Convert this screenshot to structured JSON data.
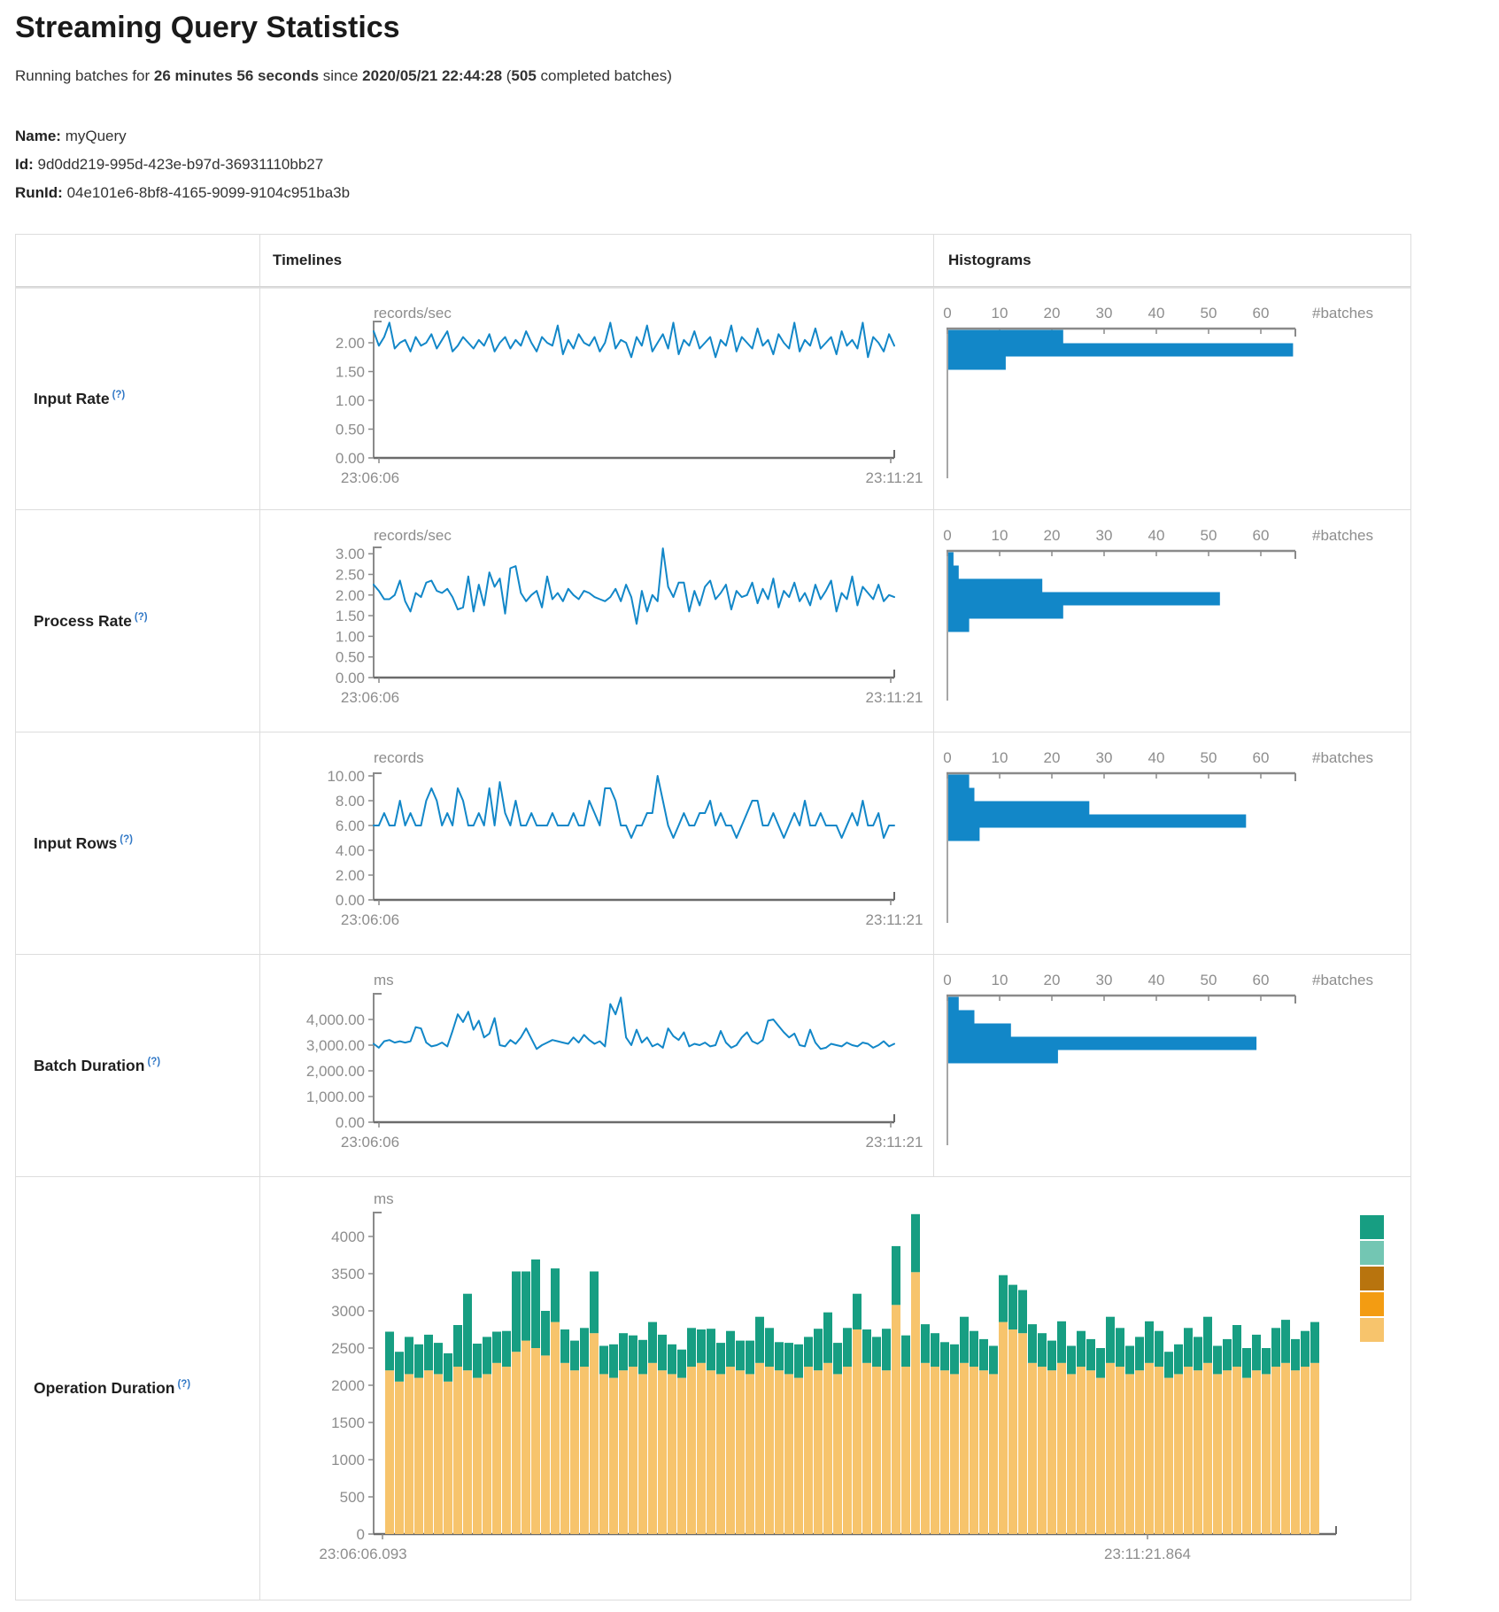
{
  "page": {
    "title": "Streaming Query Statistics",
    "running_prefix": "Running batches for ",
    "duration": "26 minutes 56 seconds",
    "since_text": " since ",
    "start_time": "2020/05/21 22:44:28",
    "paren_open": " (",
    "completed_batches": "505",
    "completed_suffix": " completed batches)",
    "name_label": "Name:",
    "name_value": "myQuery",
    "id_label": "Id:",
    "id_value": "9d0dd219-995d-423e-b97d-36931110bb27",
    "runid_label": "RunId:",
    "runid_value": "04e101e6-8bf8-4165-9099-9104c951ba3b"
  },
  "table": {
    "col_timelines": "Timelines",
    "col_histograms": "Histograms"
  },
  "colors": {
    "line": "#1287c8",
    "bar": "#1287c8",
    "axis_dark": "#6b6b6b",
    "axis": "#8a8a8a",
    "tick_text": "#8d8d8d",
    "help": "#3178c6",
    "legend": [
      "#179e82",
      "#73c6b3",
      "#b8740e",
      "#f39c12",
      "#f7c46c"
    ]
  },
  "chart_data": [
    {
      "row": "Input Rate",
      "help": "(?)",
      "timeline": {
        "type": "line",
        "unit": "records/sec",
        "x_start": "23:06:06",
        "x_end": "23:11:21",
        "ytick_labels": [
          "2.00",
          "1.50",
          "1.00",
          "0.50",
          "0.00"
        ],
        "yticks": [
          2,
          1.5,
          1,
          0.5,
          0
        ],
        "values": [
          2.2,
          1.95,
          2.1,
          2.35,
          1.9,
          2.0,
          2.05,
          1.85,
          2.1,
          1.95,
          2.0,
          2.15,
          1.9,
          2.05,
          2.2,
          1.85,
          1.95,
          2.1,
          2.0,
          1.9,
          2.05,
          1.95,
          2.15,
          1.85,
          2.0,
          2.1,
          1.9,
          2.05,
          1.95,
          2.2,
          2.0,
          1.85,
          2.1,
          2.0,
          1.95,
          2.3,
          1.8,
          2.05,
          1.9,
          2.15,
          2.0,
          1.95,
          2.1,
          1.85,
          2.0,
          2.35,
          1.9,
          2.05,
          2.0,
          1.75,
          2.1,
          1.95,
          2.3,
          1.85,
          2.0,
          2.15,
          1.9,
          2.35,
          1.8,
          2.05,
          1.95,
          2.2,
          1.9,
          2.0,
          2.1,
          1.75,
          2.05,
          1.95,
          2.3,
          1.85,
          2.1,
          2.0,
          1.9,
          2.25,
          1.95,
          2.05,
          1.8,
          2.15,
          2.0,
          1.9,
          2.35,
          1.85,
          2.05,
          1.95,
          2.25,
          1.9,
          2.0,
          2.1,
          1.8,
          2.2,
          1.95,
          2.05,
          1.9,
          2.35,
          1.75,
          2.1,
          2.0,
          1.85,
          2.15,
          1.95
        ]
      },
      "histogram": {
        "type": "bar",
        "orientation": "horizontal",
        "unit": "#batches",
        "xticks": [
          0,
          10,
          20,
          30,
          40,
          50,
          60
        ],
        "buckets": [
          22,
          66,
          11
        ]
      }
    },
    {
      "row": "Process Rate",
      "help": "(?)",
      "timeline": {
        "type": "line",
        "unit": "records/sec",
        "x_start": "23:06:06",
        "x_end": "23:11:21",
        "ytick_labels": [
          "3.00",
          "2.50",
          "2.00",
          "1.50",
          "1.00",
          "0.50",
          "0.00"
        ],
        "yticks": [
          3,
          2.5,
          2,
          1.5,
          1,
          0.5,
          0
        ],
        "values": [
          2.25,
          2.1,
          1.9,
          1.9,
          2.0,
          2.35,
          1.85,
          1.6,
          2.05,
          1.95,
          2.3,
          2.35,
          2.1,
          2.05,
          2.15,
          1.95,
          1.65,
          1.7,
          2.45,
          1.6,
          2.25,
          1.75,
          2.55,
          2.2,
          2.4,
          1.55,
          2.65,
          2.7,
          2.05,
          1.85,
          2.0,
          2.1,
          1.7,
          2.45,
          1.9,
          2.05,
          1.85,
          2.15,
          2.0,
          1.9,
          2.1,
          2.05,
          1.95,
          1.9,
          1.85,
          1.95,
          2.15,
          1.85,
          2.25,
          1.95,
          1.3,
          2.1,
          1.6,
          2.0,
          1.85,
          3.13,
          2.2,
          1.95,
          2.3,
          2.3,
          1.6,
          2.1,
          1.75,
          2.2,
          2.35,
          1.9,
          2.05,
          2.25,
          1.65,
          2.1,
          1.95,
          2.0,
          2.3,
          1.8,
          2.15,
          1.9,
          2.4,
          1.7,
          2.1,
          1.95,
          2.3,
          1.85,
          2.05,
          1.75,
          2.25,
          1.9,
          2.1,
          2.35,
          1.6,
          2.05,
          1.9,
          2.45,
          1.75,
          2.2,
          2.05,
          1.9,
          2.25,
          1.85,
          2.0,
          1.95
        ]
      },
      "histogram": {
        "type": "bar",
        "orientation": "horizontal",
        "unit": "#batches",
        "xticks": [
          0,
          10,
          20,
          30,
          40,
          50,
          60
        ],
        "buckets": [
          1,
          2,
          18,
          52,
          22,
          4
        ]
      }
    },
    {
      "row": "Input Rows",
      "help": "(?)",
      "timeline": {
        "type": "line",
        "unit": "records",
        "x_start": "23:06:06",
        "x_end": "23:11:21",
        "ytick_labels": [
          "10.00",
          "8.00",
          "6.00",
          "4.00",
          "2.00",
          "0.00"
        ],
        "yticks": [
          10,
          8,
          6,
          4,
          2,
          0
        ],
        "values": [
          6,
          6,
          7,
          6,
          6,
          8,
          6,
          7,
          6,
          6,
          8,
          9,
          8,
          6,
          7,
          6,
          9,
          8,
          6,
          6,
          7,
          6,
          9,
          6,
          9.5,
          7,
          6,
          8,
          6,
          6,
          7,
          6,
          6,
          6,
          7,
          6,
          6,
          6,
          7,
          6,
          6,
          8,
          7,
          6,
          9,
          9,
          8,
          6,
          6,
          5,
          6,
          6,
          7,
          7,
          10,
          8,
          6,
          5,
          6,
          7,
          6,
          6,
          7,
          7,
          8,
          6,
          7,
          6,
          6,
          5,
          6,
          7,
          8,
          8,
          6,
          6,
          7,
          6,
          5,
          6,
          7,
          6,
          8,
          6,
          6,
          7,
          6,
          6,
          6,
          5,
          6,
          7,
          6,
          8,
          6,
          6,
          7,
          5,
          6,
          6
        ]
      },
      "histogram": {
        "type": "bar",
        "orientation": "horizontal",
        "unit": "#batches",
        "xticks": [
          0,
          10,
          20,
          30,
          40,
          50,
          60
        ],
        "buckets": [
          4,
          5,
          27,
          57,
          6
        ]
      }
    },
    {
      "row": "Batch Duration",
      "help": "(?)",
      "timeline": {
        "type": "line",
        "unit": "ms",
        "x_start": "23:06:06",
        "x_end": "23:11:21",
        "ytick_labels": [
          "4,000.00",
          "3,000.00",
          "2,000.00",
          "1,000.00",
          "0.00"
        ],
        "yticks": [
          4000,
          3000,
          2000,
          1000,
          0
        ],
        "values": [
          3050,
          2900,
          3150,
          3200,
          3100,
          3150,
          3100,
          3150,
          3700,
          3650,
          3100,
          2950,
          3000,
          3100,
          2950,
          3550,
          4200,
          3900,
          4300,
          3600,
          3950,
          3300,
          3450,
          4050,
          3000,
          2950,
          3200,
          3050,
          3300,
          3650,
          3250,
          2850,
          3000,
          3100,
          3200,
          3150,
          3100,
          3050,
          3300,
          3100,
          3400,
          3200,
          3050,
          3150,
          2950,
          4600,
          4200,
          4850,
          3300,
          3000,
          3600,
          3100,
          3300,
          2950,
          3050,
          2900,
          3650,
          3350,
          3200,
          3500,
          2950,
          3050,
          3000,
          3100,
          2950,
          3000,
          3550,
          3100,
          2900,
          3000,
          3300,
          3500,
          3150,
          3050,
          3200,
          3950,
          4000,
          3750,
          3500,
          3300,
          3450,
          3000,
          2950,
          3600,
          3100,
          2850,
          2900,
          3050,
          3000,
          2950,
          3100,
          3000,
          2950,
          3100,
          3050,
          2900,
          3000,
          3150,
          2950,
          3050
        ]
      },
      "histogram": {
        "type": "bar",
        "orientation": "horizontal",
        "unit": "#batches",
        "xticks": [
          0,
          10,
          20,
          30,
          40,
          50,
          60
        ],
        "buckets": [
          2,
          5,
          12,
          59,
          21
        ]
      }
    },
    {
      "row": "Operation Duration",
      "help": "(?)",
      "timeline": {
        "type": "stacked-bar",
        "unit": "ms",
        "x_start": "23:06:06.093",
        "x_end": "23:11:21.864",
        "ytick_labels": [
          "4000",
          "3500",
          "3000",
          "2500",
          "2000",
          "1500",
          "1000",
          "500",
          "0"
        ],
        "yticks": [
          4000,
          3500,
          3000,
          2500,
          2000,
          1500,
          1000,
          500,
          0
        ],
        "series": [
          {
            "name": "bottom-segment",
            "color_index": 4,
            "values": [
              2200,
              2050,
              2150,
              2100,
              2200,
              2150,
              2050,
              2250,
              2200,
              2100,
              2150,
              2300,
              2250,
              2450,
              2600,
              2500,
              2400,
              2850,
              2300,
              2200,
              2250,
              2700,
              2150,
              2100,
              2200,
              2250,
              2150,
              2300,
              2200,
              2150,
              2100,
              2250,
              2300,
              2200,
              2150,
              2250,
              2200,
              2150,
              2300,
              2250,
              2200,
              2150,
              2100,
              2250,
              2200,
              2300,
              2150,
              2250,
              2750,
              2300,
              2250,
              2200,
              3080,
              2250,
              3520,
              2300,
              2250,
              2200,
              2150,
              2300,
              2250,
              2200,
              2150,
              2850,
              2750,
              2700,
              2300,
              2250,
              2200,
              2300,
              2150,
              2250,
              2200,
              2100,
              2300,
              2250,
              2150,
              2200,
              2300,
              2250,
              2100,
              2150,
              2250,
              2200,
              2300,
              2150,
              2200,
              2250,
              2100,
              2200,
              2150,
              2250,
              2300,
              2200,
              2250,
              2300
            ]
          },
          {
            "name": "top-segment",
            "color_index": 0,
            "values": [
              520,
              400,
              500,
              450,
              480,
              420,
              380,
              560,
              1030,
              460,
              500,
              420,
              480,
              1080,
              930,
              1190,
              600,
              720,
              450,
              400,
              520,
              830,
              380,
              450,
              500,
              420,
              460,
              550,
              480,
              400,
              380,
              520,
              450,
              560,
              420,
              480,
              400,
              450,
              620,
              520,
              380,
              420,
              450,
              400,
              560,
              680,
              420,
              520,
              480,
              450,
              400,
              560,
              790,
              420,
              780,
              520,
              450,
              380,
              400,
              620,
              480,
              420,
              380,
              630,
              600,
              580,
              520,
              450,
              400,
              560,
              380,
              480,
              420,
              400,
              620,
              520,
              380,
              450,
              560,
              480,
              350,
              400,
              520,
              450,
              620,
              380,
              420,
              560,
              400,
              480,
              350,
              520,
              580,
              420,
              480,
              550
            ]
          }
        ],
        "legend_swatches": 5
      }
    }
  ]
}
